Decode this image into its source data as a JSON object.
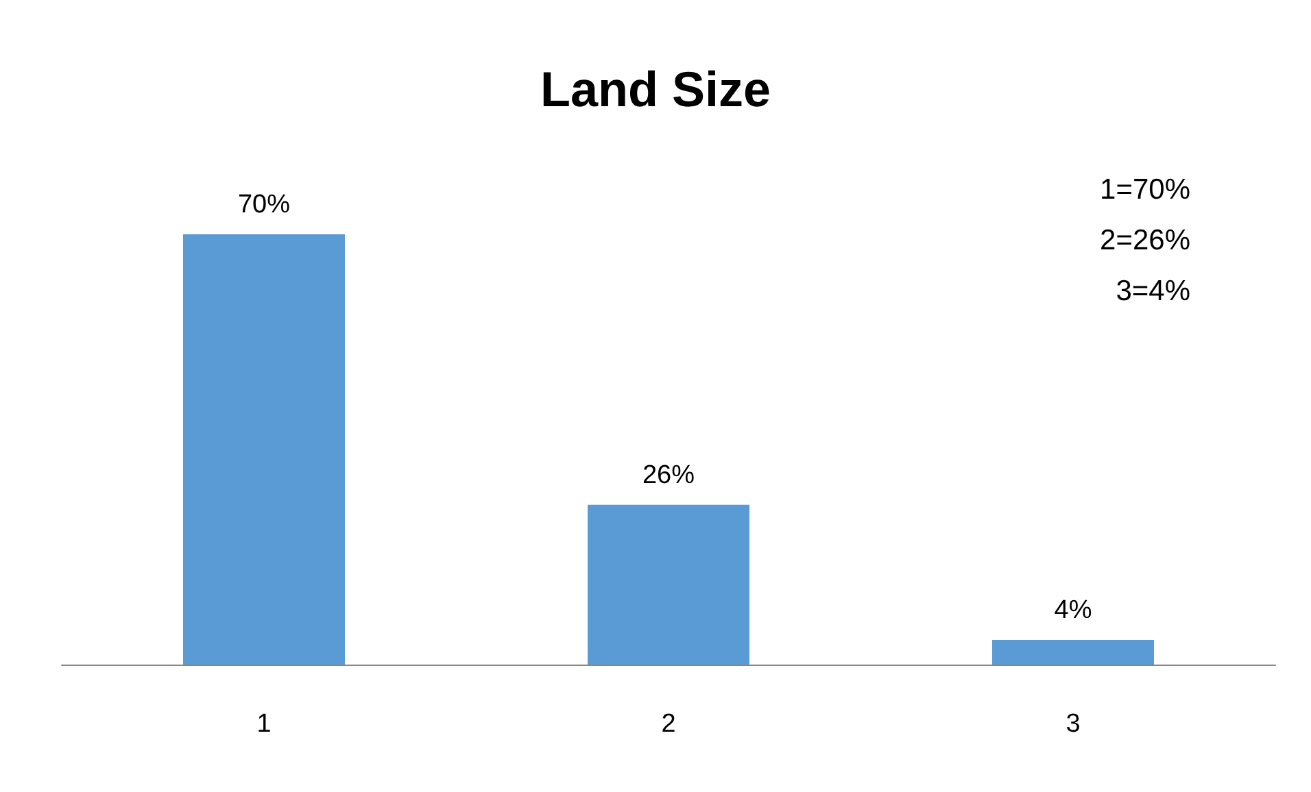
{
  "chart_data": {
    "type": "bar",
    "title": "Land Size",
    "categories": [
      "1",
      "2",
      "3"
    ],
    "values": [
      70,
      26,
      4
    ],
    "value_labels": [
      "70%",
      "26%",
      "4%"
    ],
    "color": "#5b9bd5",
    "annotations": [
      "1=70%",
      "2=26%",
      "3=4%"
    ]
  }
}
